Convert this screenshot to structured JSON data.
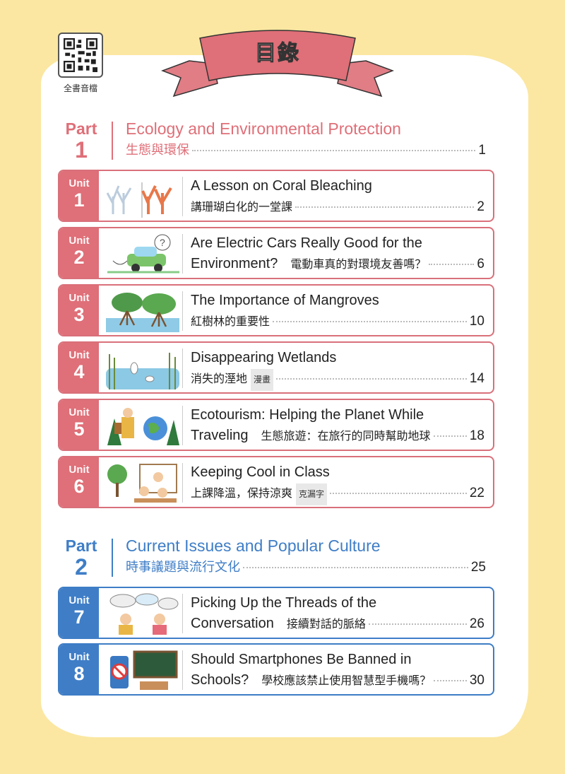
{
  "header": {
    "title": "目錄",
    "qr_label": "全書音檔"
  },
  "colors": {
    "part1": "#df6f78",
    "part2": "#3f7ec7",
    "background": "#fbe7a1"
  },
  "parts": [
    {
      "label": "Part",
      "number": "1",
      "title_en": "Ecology and Environmental Protection",
      "title_zh": "生態與環保",
      "page": "1",
      "units": [
        {
          "label": "Unit",
          "number": "1",
          "illustration": "coral-illustration",
          "line1": "A Lesson on Coral Bleaching",
          "line2_en": "",
          "zh": "講珊瑚白化的一堂課",
          "tag": "",
          "page": "2"
        },
        {
          "label": "Unit",
          "number": "2",
          "illustration": "electric-car-illustration",
          "line1": "Are Electric Cars Really Good for the",
          "line2_en": "Environment?",
          "zh": "電動車真的對環境友善嗎？",
          "tag": "",
          "page": "6"
        },
        {
          "label": "Unit",
          "number": "3",
          "illustration": "mangrove-illustration",
          "line1": "The Importance of Mangroves",
          "line2_en": "",
          "zh": "紅樹林的重要性",
          "tag": "",
          "page": "10"
        },
        {
          "label": "Unit",
          "number": "4",
          "illustration": "wetland-illustration",
          "line1": "Disappearing Wetlands",
          "line2_en": "",
          "zh": "消失的溼地",
          "tag": "漫畫",
          "page": "14"
        },
        {
          "label": "Unit",
          "number": "5",
          "illustration": "ecotourism-illustration",
          "line1": "Ecotourism: Helping the Planet While",
          "line2_en": "Traveling",
          "zh": "生態旅遊：在旅行的同時幫助地球",
          "tag": "",
          "page": "18"
        },
        {
          "label": "Unit",
          "number": "6",
          "illustration": "classroom-illustration",
          "line1": "Keeping Cool in Class",
          "line2_en": "",
          "zh": "上課降溫，保持涼爽",
          "tag": "克漏字",
          "page": "22"
        }
      ]
    },
    {
      "label": "Part",
      "number": "2",
      "title_en": "Current Issues and Popular Culture",
      "title_zh": "時事議題與流行文化",
      "page": "25",
      "units": [
        {
          "label": "Unit",
          "number": "7",
          "illustration": "conversation-illustration",
          "line1": "Picking Up the Threads of the",
          "line2_en": "Conversation",
          "zh": "接續對話的脈絡",
          "tag": "",
          "page": "26"
        },
        {
          "label": "Unit",
          "number": "8",
          "illustration": "smartphone-ban-illustration",
          "line1": "Should Smartphones Be Banned in",
          "line2_en": "Schools?",
          "zh": "學校應該禁止使用智慧型手機嗎？",
          "tag": "",
          "page": "30"
        }
      ]
    }
  ]
}
